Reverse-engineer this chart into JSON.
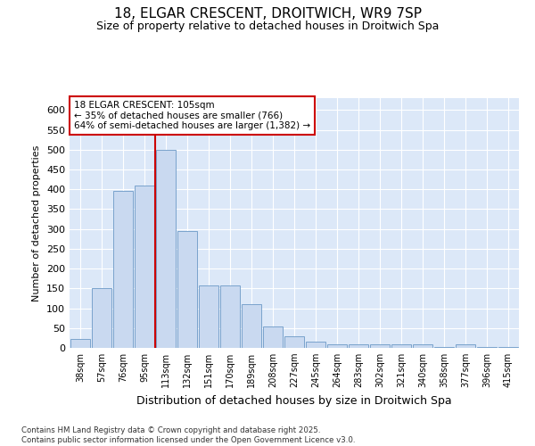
{
  "title1": "18, ELGAR CRESCENT, DROITWICH, WR9 7SP",
  "title2": "Size of property relative to detached houses in Droitwich Spa",
  "xlabel": "Distribution of detached houses by size in Droitwich Spa",
  "ylabel": "Number of detached properties",
  "categories": [
    "38sqm",
    "57sqm",
    "76sqm",
    "95sqm",
    "113sqm",
    "132sqm",
    "151sqm",
    "170sqm",
    "189sqm",
    "208sqm",
    "227sqm",
    "245sqm",
    "264sqm",
    "283sqm",
    "302sqm",
    "321sqm",
    "340sqm",
    "358sqm",
    "377sqm",
    "396sqm",
    "415sqm"
  ],
  "values": [
    22,
    150,
    395,
    410,
    500,
    295,
    158,
    158,
    110,
    55,
    30,
    15,
    8,
    8,
    8,
    8,
    8,
    3,
    8,
    3,
    3
  ],
  "bar_color": "#c9d9f0",
  "bar_edge_color": "#7aa3cc",
  "red_line_index": 4,
  "annotation_text": "18 ELGAR CRESCENT: 105sqm\n← 35% of detached houses are smaller (766)\n64% of semi-detached houses are larger (1,382) →",
  "annotation_box_color": "#ffffff",
  "annotation_box_edge": "#cc0000",
  "footer": "Contains HM Land Registry data © Crown copyright and database right 2025.\nContains public sector information licensed under the Open Government Licence v3.0.",
  "fig_background": "#ffffff",
  "plot_background": "#dce8f8",
  "grid_color": "#ffffff",
  "ylim": [
    0,
    630
  ],
  "yticks": [
    0,
    50,
    100,
    150,
    200,
    250,
    300,
    350,
    400,
    450,
    500,
    550,
    600
  ]
}
